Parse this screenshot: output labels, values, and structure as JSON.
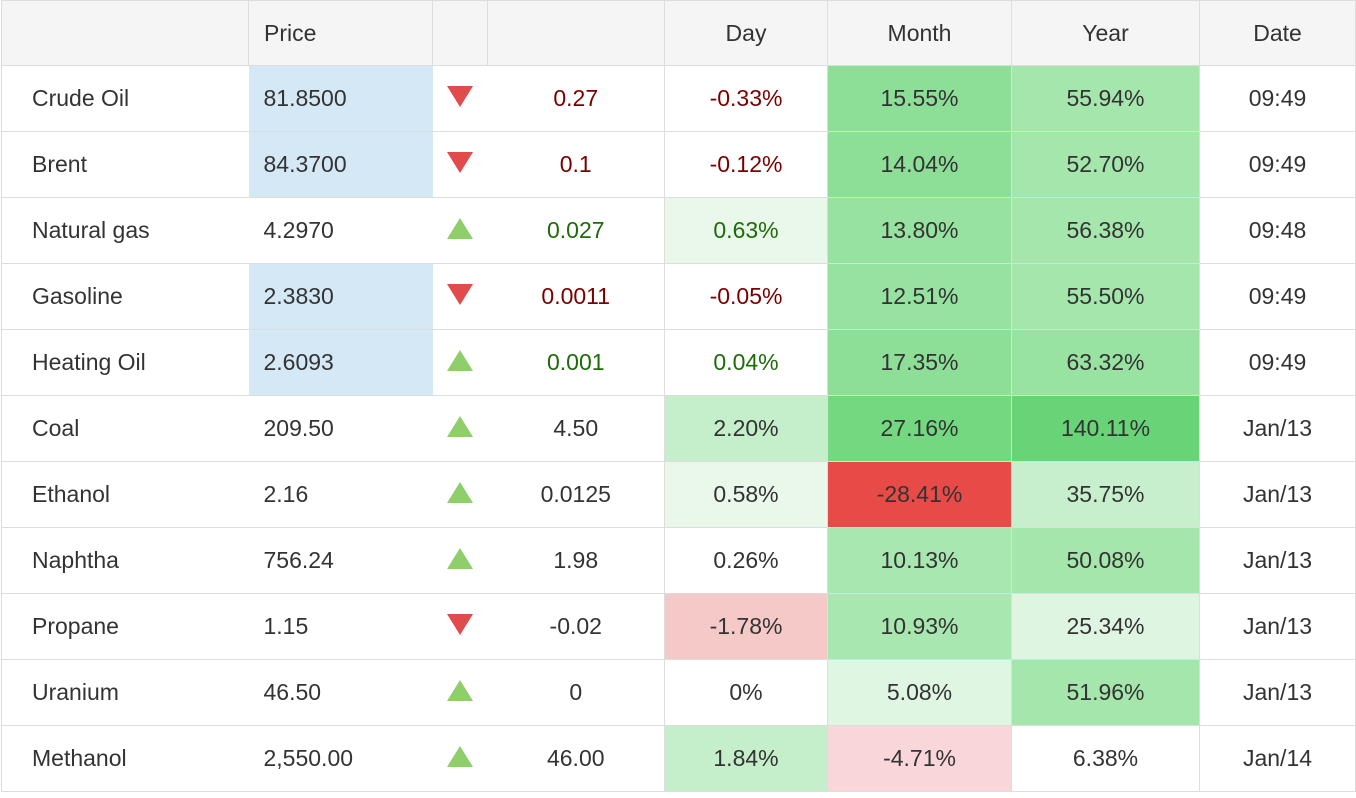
{
  "headers": {
    "name": "",
    "price": "Price",
    "arrow": "",
    "change": "",
    "day": "Day",
    "month": "Month",
    "year": "Year",
    "date": "Date"
  },
  "colors": {
    "price_highlight": "#d4e8f6",
    "down_arrow": "#e24b4b",
    "up_arrow": "#8ecf6b",
    "negative_text": "#7a0000",
    "positive_text": "#1e6b0a"
  },
  "rows": [
    {
      "name": "Crude Oil",
      "price": "81.8500",
      "direction": "down",
      "change": "0.27",
      "day": "-0.33%",
      "month": "15.55%",
      "year": "55.94%",
      "date": "09:49",
      "price_highlight": true,
      "text_tone": "neg",
      "day_bg": "#ffffff",
      "month_bg": "#8ddf98",
      "year_bg": "#a5e6ac"
    },
    {
      "name": "Brent",
      "price": "84.3700",
      "direction": "down",
      "change": "0.1",
      "day": "-0.12%",
      "month": "14.04%",
      "year": "52.70%",
      "date": "09:49",
      "price_highlight": true,
      "text_tone": "neg",
      "day_bg": "#ffffff",
      "month_bg": "#8ddf98",
      "year_bg": "#a5e6ac"
    },
    {
      "name": "Natural gas",
      "price": "4.2970",
      "direction": "up",
      "change": "0.027",
      "day": "0.63%",
      "month": "13.80%",
      "year": "56.38%",
      "date": "09:48",
      "price_highlight": false,
      "text_tone": "pos",
      "day_bg": "#eaf8ec",
      "month_bg": "#97e2a1",
      "year_bg": "#a5e6ac"
    },
    {
      "name": "Gasoline",
      "price": "2.3830",
      "direction": "down",
      "change": "0.0011",
      "day": "-0.05%",
      "month": "12.51%",
      "year": "55.50%",
      "date": "09:49",
      "price_highlight": true,
      "text_tone": "neg",
      "day_bg": "#ffffff",
      "month_bg": "#97e2a1",
      "year_bg": "#a5e6ac"
    },
    {
      "name": "Heating Oil",
      "price": "2.6093",
      "direction": "up",
      "change": "0.001",
      "day": "0.04%",
      "month": "17.35%",
      "year": "63.32%",
      "date": "09:49",
      "price_highlight": true,
      "text_tone": "pos",
      "day_bg": "#ffffff",
      "month_bg": "#8ddf98",
      "year_bg": "#98e2a2"
    },
    {
      "name": "Coal",
      "price": "209.50",
      "direction": "up",
      "change": "4.50",
      "day": "2.20%",
      "month": "27.16%",
      "year": "140.11%",
      "date": "Jan/13",
      "price_highlight": false,
      "text_tone": "",
      "day_bg": "#c5efca",
      "month_bg": "#73d880",
      "year_bg": "#69d477"
    },
    {
      "name": "Ethanol",
      "price": "2.16",
      "direction": "up",
      "change": "0.0125",
      "day": "0.58%",
      "month": "-28.41%",
      "year": "35.75%",
      "date": "Jan/13",
      "price_highlight": false,
      "text_tone": "",
      "day_bg": "#eaf8ec",
      "month_bg": "#e84a47",
      "year_bg": "#c8efcd"
    },
    {
      "name": "Naphtha",
      "price": "756.24",
      "direction": "up",
      "change": "1.98",
      "day": "0.26%",
      "month": "10.13%",
      "year": "50.08%",
      "date": "Jan/13",
      "price_highlight": false,
      "text_tone": "",
      "day_bg": "#ffffff",
      "month_bg": "#a9e7b1",
      "year_bg": "#a5e6ac"
    },
    {
      "name": "Propane",
      "price": "1.15",
      "direction": "down",
      "change": "-0.02",
      "day": "-1.78%",
      "month": "10.93%",
      "year": "25.34%",
      "date": "Jan/13",
      "price_highlight": false,
      "text_tone": "",
      "day_bg": "#f6c9c9",
      "month_bg": "#a9e7b1",
      "year_bg": "#def5e1"
    },
    {
      "name": "Uranium",
      "price": "46.50",
      "direction": "up",
      "change": "0",
      "day": "0%",
      "month": "5.08%",
      "year": "51.96%",
      "date": "Jan/13",
      "price_highlight": false,
      "text_tone": "",
      "day_bg": "#ffffff",
      "month_bg": "#dff6e2",
      "year_bg": "#a5e6ac"
    },
    {
      "name": "Methanol",
      "price": "2,550.00",
      "direction": "up",
      "change": "46.00",
      "day": "1.84%",
      "month": "-4.71%",
      "year": "6.38%",
      "date": "Jan/14",
      "price_highlight": false,
      "text_tone": "",
      "day_bg": "#c5efca",
      "month_bg": "#f8d6da",
      "year_bg": "#ffffff"
    }
  ]
}
